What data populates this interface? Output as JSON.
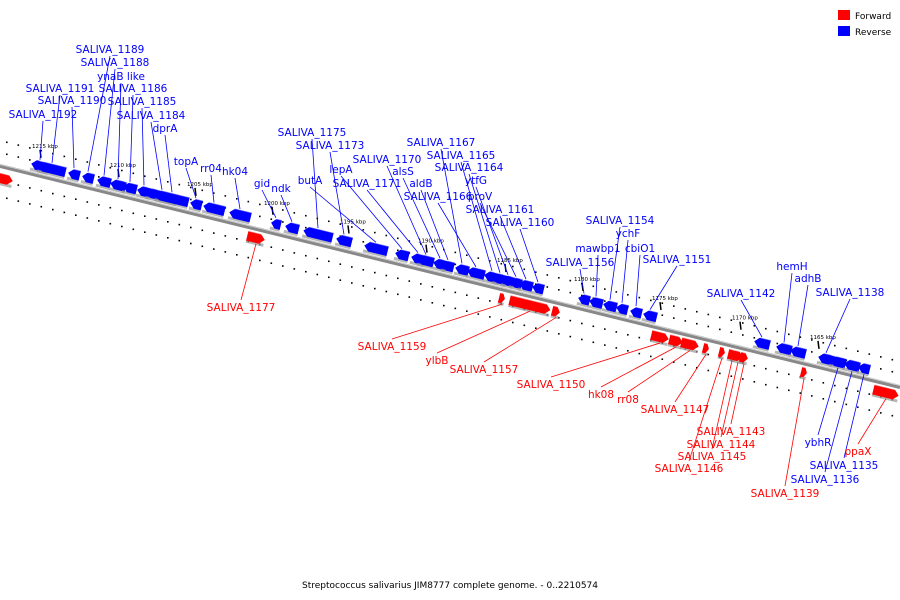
{
  "caption": "Streptococcus salivarius JIM8777 complete genome. - 0..2210574",
  "legend": [
    {
      "label": "Forward",
      "color": "#ff0000"
    },
    {
      "label": "Reverse",
      "color": "#0000ff"
    }
  ],
  "colors": {
    "forward": "#ff0000",
    "reverse": "#0000ff",
    "backbone": "#808080"
  },
  "ticks": [
    "1215 kbp",
    "1210 kbp",
    "1205 kbp",
    "1200 kbp",
    "1195 kbp",
    "1190 kbp",
    "1185 kbp",
    "1180 kbp",
    "1175 kbp",
    "1170 kbp",
    "1165 kbp"
  ],
  "reverse_genes": [
    "SALIVA_1192",
    "SALIVA_1191",
    "SALIVA_1190",
    "SALIVA_1189",
    "SALIVA_1188",
    "ynaB like",
    "SALIVA_1186",
    "SALIVA_1185",
    "SALIVA_1184",
    "dprA",
    "topA",
    "rr04",
    "hk04",
    "gid",
    "ndk",
    "SALIVA_1175",
    "SALIVA_1173",
    "butA",
    "lepA",
    "SALIVA_1171",
    "SALIVA_1170",
    "alsS",
    "aldB",
    "SALIVA_1167",
    "SALIVA_1166",
    "SALIVA_1165",
    "SALIVA_1164",
    "ytfG",
    "proV",
    "SALIVA_1161",
    "SALIVA_1160",
    "SALIVA_1156",
    "mawbp1",
    "SALIVA_1154",
    "ychF",
    "cbiO1",
    "SALIVA_1151",
    "SALIVA_1142",
    "hemH",
    "adhB",
    "SALIVA_1138",
    "ybhR",
    "SALIVA_1136",
    "SALIVA_1135"
  ],
  "forward_genes": [
    "SALIVA_1177",
    "SALIVA_1159",
    "ylbB",
    "SALIVA_1157",
    "SALIVA_1150",
    "hk08",
    "rr08",
    "SALIVA_1147",
    "SALIVA_1146",
    "SALIVA_1145",
    "SALIVA_1144",
    "SALIVA_1143",
    "SALIVA_1139",
    "ppaX"
  ]
}
